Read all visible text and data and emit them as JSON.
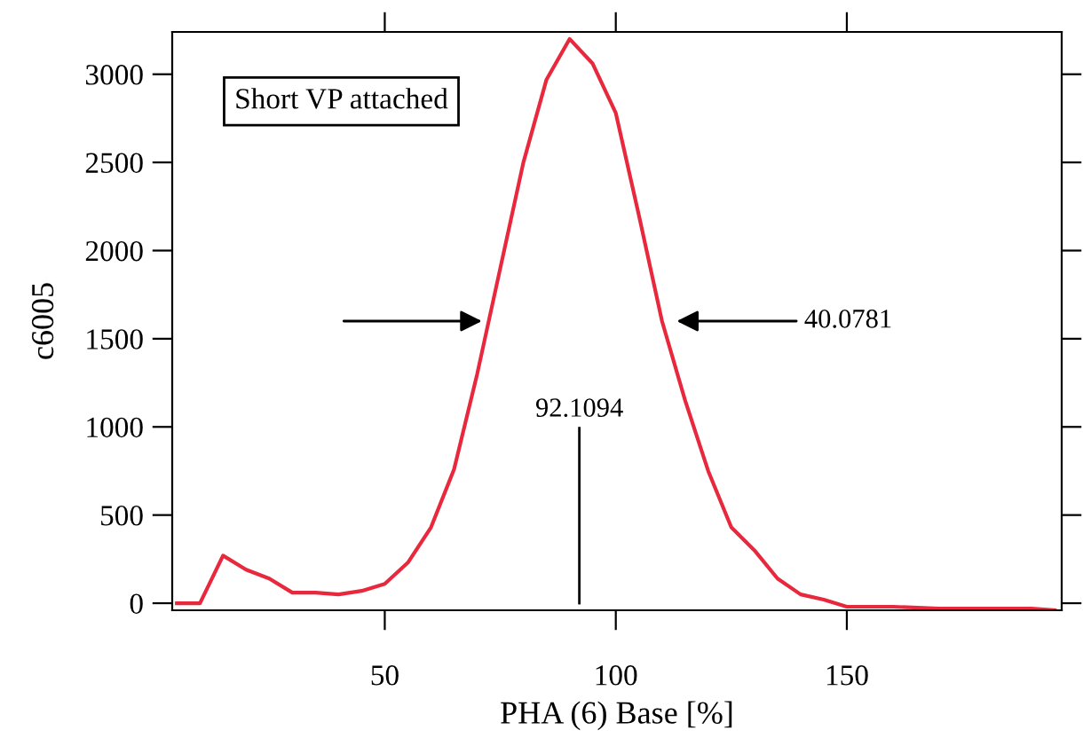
{
  "chart_data": {
    "type": "line",
    "xlabel": "PHA (6) Base [%]",
    "ylabel": "c6005",
    "xlim": [
      4,
      196.5
    ],
    "ylim": [
      -40,
      3240
    ],
    "xticks": [
      50,
      100,
      150
    ],
    "yticks": [
      0,
      500,
      1000,
      1500,
      2000,
      2500,
      3000
    ],
    "grid": false,
    "legend": false,
    "marker": "none",
    "line_style": "solid",
    "series": [
      {
        "color": "#e8283c",
        "x": [
          5,
          10,
          15,
          20,
          25,
          30,
          35,
          40,
          45,
          50,
          55,
          60,
          65,
          70,
          75,
          80,
          85,
          90,
          95,
          100,
          105,
          110,
          115,
          120,
          125,
          130,
          135,
          140,
          145,
          150,
          155,
          160,
          170,
          180,
          190,
          195
        ],
        "values": [
          0,
          0,
          270,
          190,
          140,
          60,
          60,
          50,
          70,
          110,
          230,
          430,
          760,
          1300,
          1900,
          2500,
          2970,
          3200,
          3060,
          2780,
          2200,
          1600,
          1150,
          750,
          430,
          300,
          140,
          50,
          20,
          -20,
          -20,
          -20,
          -30,
          -30,
          -30,
          -40
        ]
      }
    ],
    "ref_lines": [
      {
        "axis": "x",
        "value": 92.1094,
        "label": "92.1094"
      }
    ],
    "annotations": [
      "Short VP attached",
      "40.0781"
    ]
  }
}
